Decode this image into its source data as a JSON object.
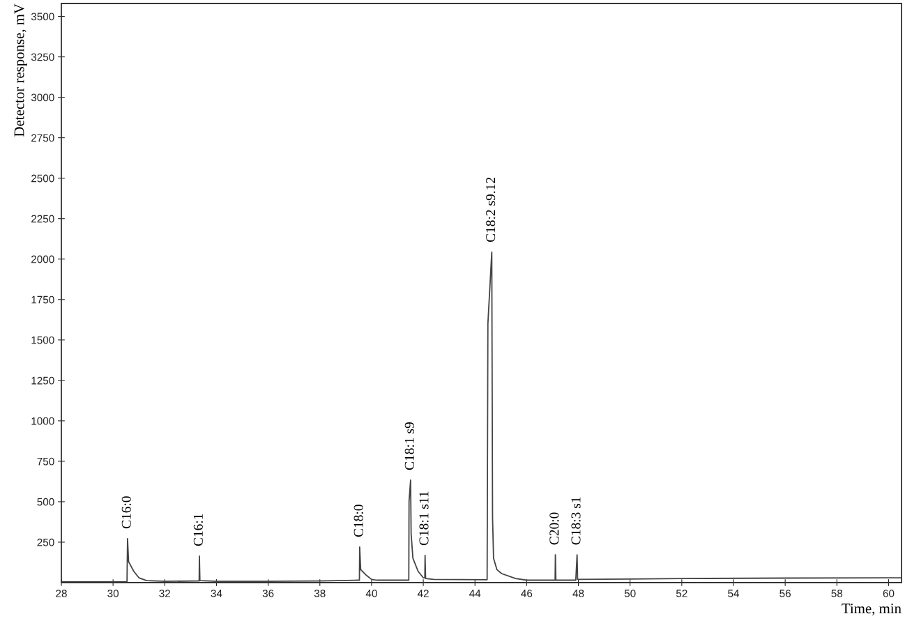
{
  "chart_data": {
    "type": "line",
    "xlabel": "Time, min",
    "ylabel": "Detector response, mV",
    "xlim": [
      28,
      60.5
    ],
    "xticks": [
      28,
      30,
      32,
      34,
      36,
      38,
      40,
      42,
      44,
      46,
      48,
      50,
      52,
      54,
      56,
      58,
      60
    ],
    "ylim": [
      0,
      3580
    ],
    "yticks": [
      250,
      500,
      750,
      1000,
      1250,
      1500,
      1750,
      2000,
      2250,
      2500,
      2750,
      3000,
      3250,
      3500
    ],
    "grid": false,
    "legend": false,
    "marker": "none",
    "line_style": "solid",
    "series": [
      {
        "color": "#444444",
        "x": [
          28,
          30.5,
          30.54,
          30.56,
          30.6,
          30.8,
          31.0,
          31.3,
          32,
          33.3,
          33.33,
          33.34,
          33.36,
          34,
          36,
          38,
          39.5,
          39.53,
          39.54,
          39.58,
          39.8,
          40.0,
          40.2,
          41.43,
          41.44,
          41.45,
          41.51,
          41.53,
          41.6,
          41.8,
          42.0,
          42.06,
          42.07,
          42.09,
          42.4,
          44.46,
          44.47,
          44.5,
          44.65,
          44.68,
          44.72,
          44.85,
          45.03,
          45.57,
          46,
          47.1,
          47.11,
          47.13,
          47.9,
          47.95,
          47.97,
          50,
          52,
          56,
          60,
          60.5
        ],
        "values": [
          5,
          5,
          5,
          272,
          130,
          70,
          30,
          12,
          8,
          10,
          10,
          164,
          12,
          8,
          8,
          10,
          15,
          15,
          220,
          80,
          45,
          20,
          15,
          15,
          15,
          500,
          634,
          300,
          150,
          70,
          30,
          30,
          168,
          25,
          20,
          18,
          18,
          1600,
          2043,
          400,
          150,
          80,
          56,
          25,
          15,
          15,
          172,
          15,
          15,
          172,
          20,
          22,
          25,
          28,
          30,
          30
        ]
      }
    ],
    "annotations": [
      {
        "text": "C16:0",
        "x": 30.56,
        "y": 272
      },
      {
        "text": "C16:1",
        "x": 33.34,
        "y": 164
      },
      {
        "text": "C18:0",
        "x": 39.54,
        "y": 220
      },
      {
        "text": "C18:1 s9",
        "x": 41.51,
        "y": 634
      },
      {
        "text": "C18:1 s11",
        "x": 42.07,
        "y": 168
      },
      {
        "text": "C18:2 s9.12",
        "x": 44.65,
        "y": 2043
      },
      {
        "text": "C20:0",
        "x": 47.11,
        "y": 172
      },
      {
        "text": "C18:3 s1",
        "x": 47.95,
        "y": 172
      }
    ]
  }
}
